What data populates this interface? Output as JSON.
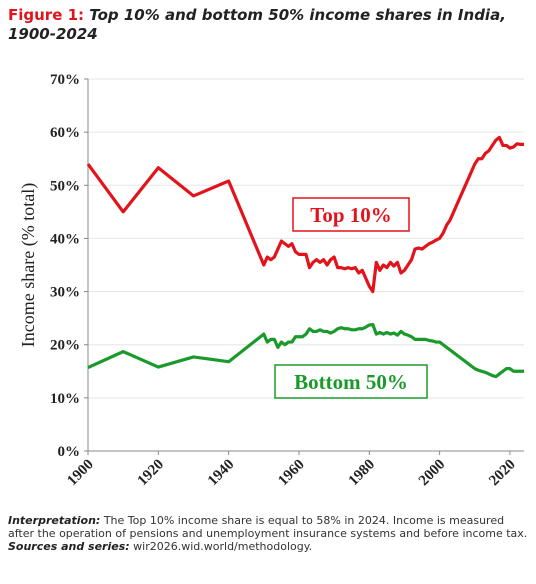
{
  "chart_data": {
    "type": "line",
    "title_prefix": "Figure 1:",
    "title": "Top 10% and bottom 50% income shares in India, 1900-2024",
    "y_label": "Income share (% total)",
    "x": [
      1900,
      1910,
      1920,
      1930,
      1940,
      1950,
      1951,
      1952,
      1953,
      1954,
      1955,
      1956,
      1957,
      1958,
      1959,
      1960,
      1961,
      1962,
      1963,
      1964,
      1965,
      1966,
      1967,
      1968,
      1969,
      1970,
      1971,
      1972,
      1973,
      1974,
      1975,
      1976,
      1977,
      1978,
      1979,
      1980,
      1981,
      1982,
      1983,
      1984,
      1985,
      1986,
      1987,
      1988,
      1989,
      1990,
      1991,
      1992,
      1993,
      1994,
      1995,
      1996,
      1997,
      1998,
      1999,
      2000,
      2001,
      2002,
      2003,
      2004,
      2005,
      2006,
      2007,
      2008,
      2009,
      2010,
      2011,
      2012,
      2013,
      2014,
      2015,
      2016,
      2017,
      2018,
      2019,
      2020,
      2021,
      2022,
      2023,
      2024
    ],
    "series": [
      {
        "name": "Top 10%",
        "color": "#e3131b",
        "values": [
          54,
          45,
          53.3,
          48,
          50.8,
          35,
          36.5,
          36,
          36.5,
          38,
          39.5,
          39,
          38.5,
          39,
          37.5,
          37,
          37,
          37,
          34.5,
          35.5,
          36,
          35.5,
          36,
          35,
          36,
          36.5,
          34.5,
          34.5,
          34.3,
          34.5,
          34.3,
          34.5,
          33.5,
          34,
          32.5,
          31,
          30,
          35.5,
          34,
          35,
          34.5,
          35.5,
          34.8,
          35.5,
          33.5,
          34,
          35,
          36,
          38,
          38.2,
          38,
          38.5,
          39,
          39.3,
          39.7,
          40,
          41,
          42.5,
          43.5,
          45,
          46.5,
          48,
          49.5,
          51,
          52.5,
          54,
          55,
          55,
          56,
          56.5,
          57.5,
          58.5,
          59,
          57.5,
          57.5,
          57,
          57.2,
          57.8,
          57.7,
          57.7
        ]
      },
      {
        "name": "Bottom 50%",
        "color": "#1a9a2a",
        "values": [
          15.7,
          18.7,
          15.8,
          17.7,
          16.8,
          22,
          20.5,
          21,
          21,
          19.5,
          20.5,
          20,
          20.5,
          20.5,
          21.5,
          21.5,
          21.5,
          22,
          23,
          22.5,
          22.5,
          22.8,
          22.5,
          22.5,
          22.2,
          22.5,
          23,
          23.2,
          23,
          23,
          22.8,
          22.8,
          23,
          23,
          23.3,
          23.7,
          23.8,
          22,
          22.3,
          22,
          22.3,
          22,
          22.2,
          21.8,
          22.5,
          22,
          21.8,
          21.5,
          21,
          21,
          21,
          21,
          20.8,
          20.7,
          20.5,
          20.5,
          20,
          19.5,
          19,
          18.5,
          18,
          17.5,
          17,
          16.5,
          16,
          15.5,
          15.2,
          15,
          14.8,
          14.5,
          14.2,
          14,
          14.5,
          15,
          15.5,
          15.5,
          15,
          15,
          15,
          15
        ]
      }
    ],
    "xlim": [
      1900,
      2024
    ],
    "xticks": [
      1900,
      1920,
      1940,
      1960,
      1980,
      2000,
      2020
    ],
    "ylim": [
      0,
      70
    ],
    "yticks": [
      {
        "value": 0,
        "label": "0%"
      },
      {
        "value": 10,
        "label": "10%"
      },
      {
        "value": 20,
        "label": "20%"
      },
      {
        "value": 30,
        "label": "30%"
      },
      {
        "value": 40,
        "label": "40%"
      },
      {
        "value": 50,
        "label": "50%"
      },
      {
        "value": 60,
        "label": "60%"
      },
      {
        "value": 70,
        "label": "70%"
      }
    ],
    "grid": true
  },
  "notes": {
    "interpretation_label": "Interpretation:",
    "interpretation": "The Top 10% income share is equal to 58% in 2024. Income is measured after the operation of pensions and unemployment insurance systems and before income tax.",
    "sources_label": "Sources and series:",
    "sources": "wir2026.wid.world/methodology."
  }
}
